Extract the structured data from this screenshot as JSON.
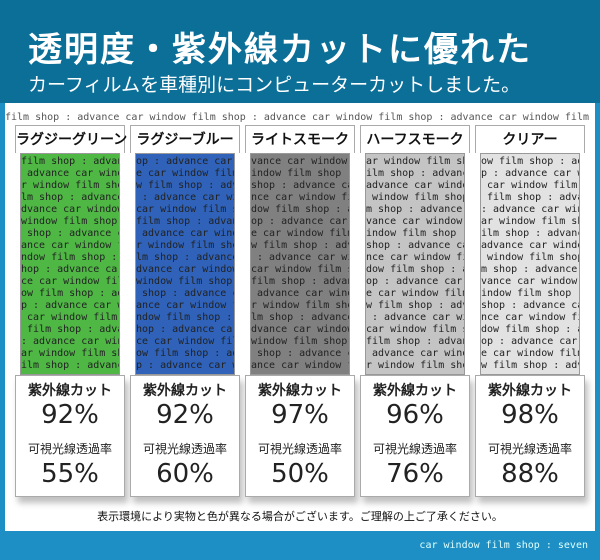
{
  "header": {
    "title": "透明度・紫外線カットに優れた",
    "subtitle": "カーフィルムを車種別にコンピューターカットしました。"
  },
  "background_pattern": "film shop : advance car window ",
  "cards": [
    {
      "name": "ラグジーグリーン",
      "color": "#4fb845",
      "uv_label": "紫外線カット",
      "uv": "92%",
      "vl_label": "可視光線透過率",
      "vl": "55%"
    },
    {
      "name": "ラグジーブルー",
      "color": "#2f62b8",
      "uv_label": "紫外線カット",
      "uv": "92%",
      "vl_label": "可視光線透過率",
      "vl": "60%"
    },
    {
      "name": "ライトスモーク",
      "color": "#808080",
      "uv_label": "紫外線カット",
      "uv": "97%",
      "vl_label": "可視光線透過率",
      "vl": "50%"
    },
    {
      "name": "ハーフスモーク",
      "color": "#c4c4c4",
      "uv_label": "紫外線カット",
      "uv": "96%",
      "vl_label": "可視光線透過率",
      "vl": "76%"
    },
    {
      "name": "クリアー",
      "color": "#e2e2e2",
      "uv_label": "紫外線カット",
      "uv": "98%",
      "vl_label": "可視光線透過率",
      "vl": "88%"
    }
  ],
  "note": "表示環境により実物と色が異なる場合がございます。ご理解の上ご了承ください。",
  "footer": "car window film shop : seven"
}
